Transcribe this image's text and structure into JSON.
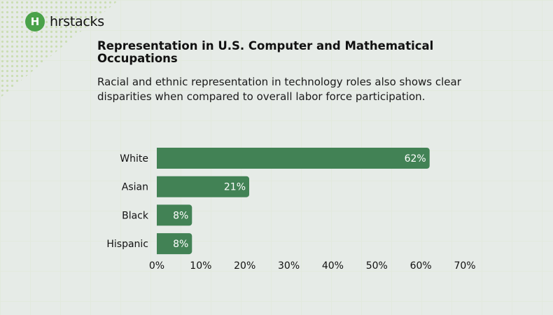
{
  "brand": {
    "name": "hrstacks",
    "logo_color": "#4aa24a"
  },
  "header": {
    "title": "Representation in U.S. Computer and Mathematical Occupations",
    "subtitle": "Racial and ethnic representation in technology roles also shows clear disparities when compared to overall labor force participation."
  },
  "chart_data": {
    "type": "bar",
    "orientation": "horizontal",
    "categories": [
      "White",
      "Asian",
      "Black",
      "Hispanic"
    ],
    "values": [
      62,
      21,
      8,
      8
    ],
    "data_labels": [
      "62%",
      "21%",
      "8%",
      "8%"
    ],
    "xlim": [
      0,
      70
    ],
    "x_ticks": [
      "0%",
      "10%",
      "20%",
      "30%",
      "40%",
      "50%",
      "60%",
      "70%"
    ],
    "bar_color": "#428255",
    "grid": false,
    "legend": "none"
  }
}
